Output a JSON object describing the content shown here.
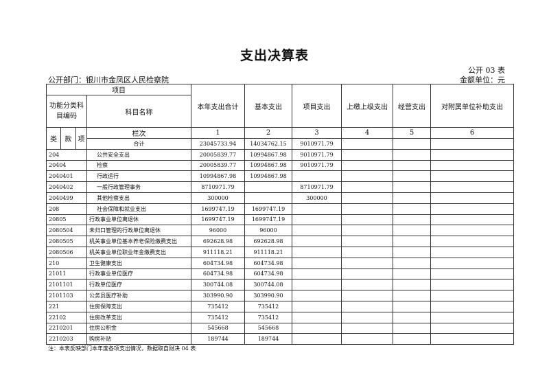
{
  "title": "支出决算表",
  "form_no": "公开 03 表",
  "unit": "金额单位：元",
  "department": "公开部门：银川市金凤区人民检察院",
  "header": {
    "item": "项目",
    "func_code": "功能分类科目编码",
    "subject_name": "科目名称",
    "cols": [
      "本年支出合计",
      "基本支出",
      "项目支出",
      "上缴上级支出",
      "经营支出",
      "对附属单位补助支出"
    ],
    "lei": "类",
    "kuan": "款",
    "xiang": "项",
    "row_no_label": "栏次",
    "row_nos": [
      "1",
      "2",
      "3",
      "4",
      "5",
      "6"
    ],
    "total_label": "合计",
    "totals": [
      "23045733.94",
      "14034762.15",
      "9010971.79",
      "",
      "",
      ""
    ]
  },
  "rows": [
    {
      "code": "204",
      "name": "公共安全支出",
      "v": [
        "20005839.77",
        "10994867.98",
        "9010971.79",
        "",
        "",
        ""
      ]
    },
    {
      "code": "20404",
      "name": "检察",
      "v": [
        "20005839.77",
        "10994867.98",
        "9010971.79",
        "",
        "",
        ""
      ]
    },
    {
      "code": "2040401",
      "name": "行政运行",
      "v": [
        "10994867.98",
        "10994867.98",
        "",
        "",
        "",
        ""
      ]
    },
    {
      "code": "2040402",
      "name": "一般行政管理事务",
      "v": [
        "8710971.79",
        "",
        "8710971.79",
        "",
        "",
        ""
      ]
    },
    {
      "code": "2040499",
      "name": "其他检察支出",
      "v": [
        "300000",
        "",
        "300000",
        "",
        "",
        ""
      ]
    },
    {
      "code": "208",
      "name": "社会保障和就业支出",
      "v": [
        "1699747.19",
        "1699747.19",
        "",
        "",
        "",
        ""
      ]
    },
    {
      "code": "20805",
      "name": "行政事业单位离退休",
      "v": [
        "1699747.19",
        "1699747.19",
        "",
        "",
        "",
        ""
      ]
    },
    {
      "code": "2080504",
      "name": "未归口管理的行政单位离退休",
      "v": [
        "96000",
        "96000",
        "",
        "",
        "",
        ""
      ]
    },
    {
      "code": "2080505",
      "name": "机关事业单位基本养老保险缴费支出",
      "v": [
        "692628.98",
        "692628.98",
        "",
        "",
        "",
        ""
      ]
    },
    {
      "code": "2080506",
      "name": "机关事业单位职业年金缴费支出",
      "v": [
        "911118.21",
        "911118.21",
        "",
        "",
        "",
        ""
      ]
    },
    {
      "code": "210",
      "name": "卫生健康支出",
      "v": [
        "604734.98",
        "604734.98",
        "",
        "",
        "",
        ""
      ]
    },
    {
      "code": "21011",
      "name": "行政事业单位医疗",
      "v": [
        "604734.98",
        "604734.98",
        "",
        "",
        "",
        ""
      ]
    },
    {
      "code": "2101101",
      "name": "行政单位医疗",
      "v": [
        "300744.08",
        "300744.08",
        "",
        "",
        "",
        ""
      ]
    },
    {
      "code": "2101103",
      "name": "公务员医疗补助",
      "v": [
        "303990.90",
        "303990.90",
        "",
        "",
        "",
        ""
      ]
    },
    {
      "code": "221",
      "name": "住房保障支出",
      "v": [
        "735412",
        "735412",
        "",
        "",
        "",
        ""
      ]
    },
    {
      "code": "22102",
      "name": "住房改革支出",
      "v": [
        "735412",
        "735412",
        "",
        "",
        "",
        ""
      ]
    },
    {
      "code": "2210201",
      "name": "住房公积金",
      "v": [
        "545668",
        "545668",
        "",
        "",
        "",
        ""
      ]
    },
    {
      "code": "2210203",
      "name": "购房补贴",
      "v": [
        "189744",
        "189744",
        "",
        "",
        "",
        ""
      ]
    }
  ],
  "note": "注：本表反映部门本年度各项支出情况，数据取自财决 04 表"
}
